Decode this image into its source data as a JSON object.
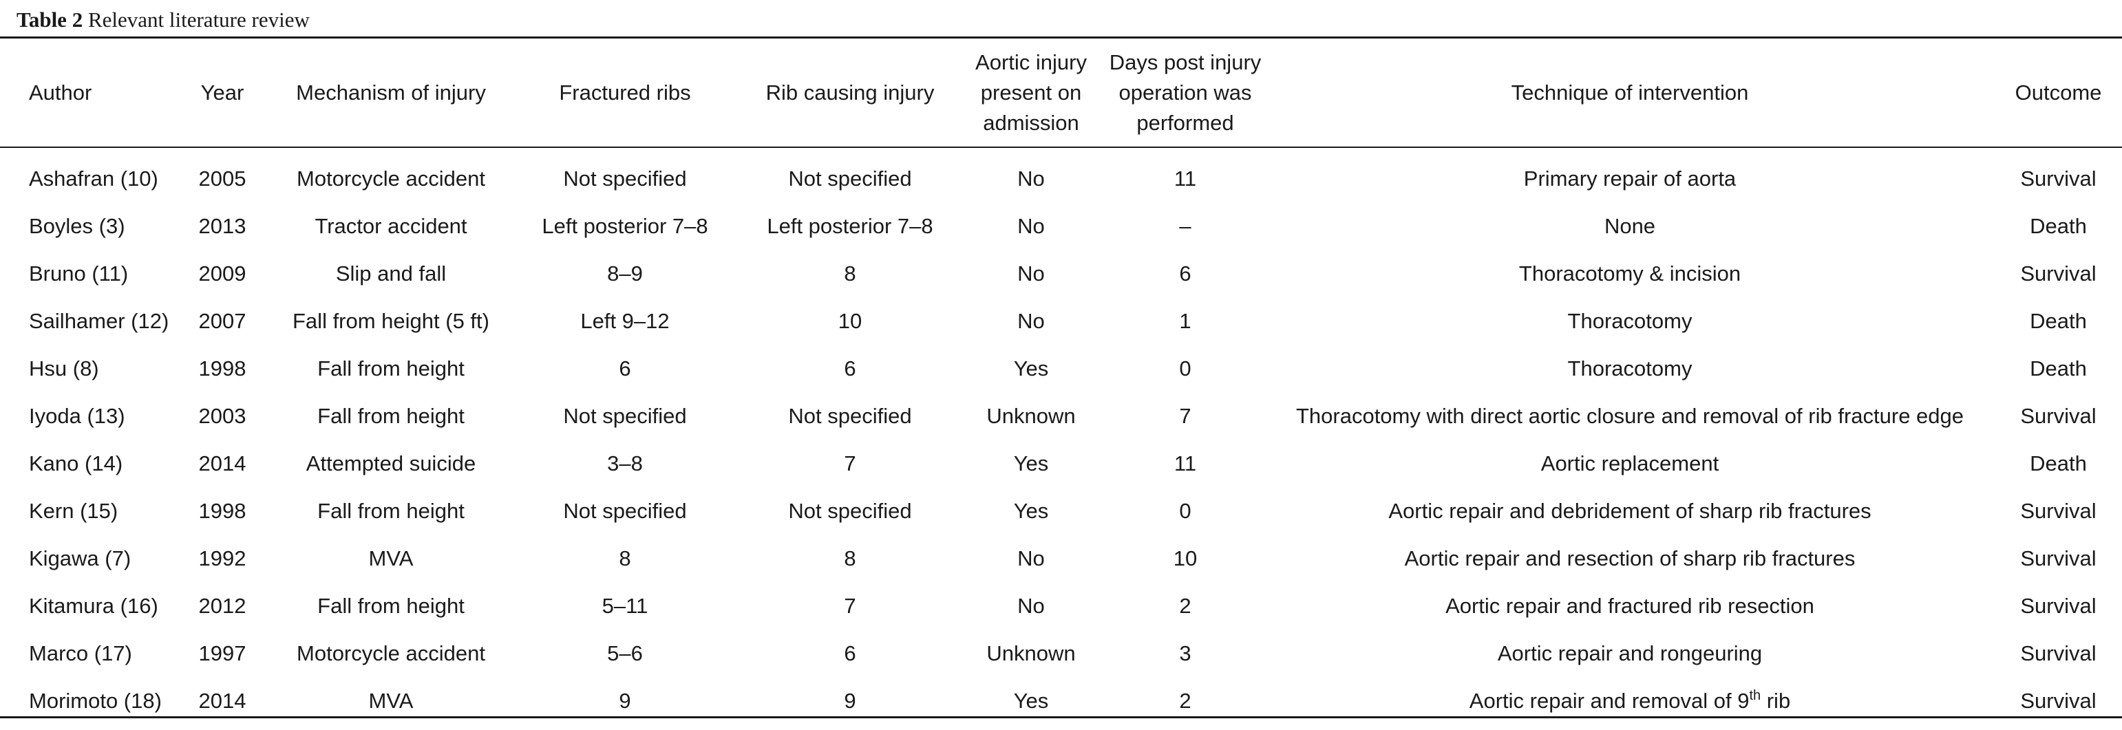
{
  "caption": {
    "label": "Table 2",
    "title": "Relevant literature review"
  },
  "table": {
    "headers": {
      "author": "Author",
      "year": "Year",
      "mechanism": "Mechanism of injury",
      "fractured_ribs": "Fractured ribs",
      "rib_causing": "Rib causing injury",
      "aortic_line1": "Aortic injury",
      "aortic_line2": "present on",
      "aortic_line3": "admission",
      "days_line1": "Days post injury",
      "days_line2": "operation was",
      "days_line3": "performed",
      "technique": "Technique of intervention",
      "outcome": "Outcome"
    },
    "rows": [
      {
        "author": "Ashafran (10)",
        "year": "2005",
        "mechanism": "Motorcycle accident",
        "fractured": "Not specified",
        "rib": "Not specified",
        "aortic": "No",
        "days": "11",
        "technique": "Primary repair of aorta",
        "technique_sup": "",
        "technique_tail": "",
        "outcome": "Survival"
      },
      {
        "author": "Boyles (3)",
        "year": "2013",
        "mechanism": "Tractor accident",
        "fractured": "Left posterior 7–8",
        "rib": "Left posterior 7–8",
        "aortic": "No",
        "days": "–",
        "technique": "None",
        "technique_sup": "",
        "technique_tail": "",
        "outcome": "Death"
      },
      {
        "author": "Bruno (11)",
        "year": "2009",
        "mechanism": "Slip and fall",
        "fractured": "8–9",
        "rib": "8",
        "aortic": "No",
        "days": "6",
        "technique": "Thoracotomy & incision",
        "technique_sup": "",
        "technique_tail": "",
        "outcome": "Survival"
      },
      {
        "author": "Sailhamer (12)",
        "year": "2007",
        "mechanism": "Fall from height (5 ft)",
        "fractured": "Left 9–12",
        "rib": "10",
        "aortic": "No",
        "days": "1",
        "technique": "Thoracotomy",
        "technique_sup": "",
        "technique_tail": "",
        "outcome": "Death"
      },
      {
        "author": "Hsu (8)",
        "year": "1998",
        "mechanism": "Fall from height",
        "fractured": "6",
        "rib": "6",
        "aortic": "Yes",
        "days": "0",
        "technique": "Thoracotomy",
        "technique_sup": "",
        "technique_tail": "",
        "outcome": "Death"
      },
      {
        "author": "Iyoda (13)",
        "year": "2003",
        "mechanism": "Fall from height",
        "fractured": "Not specified",
        "rib": "Not specified",
        "aortic": "Unknown",
        "days": "7",
        "technique": "Thoracotomy with direct aortic closure and removal of rib fracture edge",
        "technique_sup": "",
        "technique_tail": "",
        "outcome": "Survival"
      },
      {
        "author": "Kano (14)",
        "year": "2014",
        "mechanism": "Attempted suicide",
        "fractured": "3–8",
        "rib": "7",
        "aortic": "Yes",
        "days": "11",
        "technique": "Aortic replacement",
        "technique_sup": "",
        "technique_tail": "",
        "outcome": "Death"
      },
      {
        "author": "Kern (15)",
        "year": "1998",
        "mechanism": "Fall from height",
        "fractured": "Not specified",
        "rib": "Not specified",
        "aortic": "Yes",
        "days": "0",
        "technique": "Aortic repair and debridement of sharp rib fractures",
        "technique_sup": "",
        "technique_tail": "",
        "outcome": "Survival"
      },
      {
        "author": "Kigawa (7)",
        "year": "1992",
        "mechanism": "MVA",
        "fractured": "8",
        "rib": "8",
        "aortic": "No",
        "days": "10",
        "technique": "Aortic repair and resection of sharp rib fractures",
        "technique_sup": "",
        "technique_tail": "",
        "outcome": "Survival"
      },
      {
        "author": "Kitamura (16)",
        "year": "2012",
        "mechanism": "Fall from height",
        "fractured": "5–11",
        "rib": "7",
        "aortic": "No",
        "days": "2",
        "technique": "Aortic repair and fractured rib resection",
        "technique_sup": "",
        "technique_tail": "",
        "outcome": "Survival"
      },
      {
        "author": "Marco (17)",
        "year": "1997",
        "mechanism": "Motorcycle accident",
        "fractured": "5–6",
        "rib": "6",
        "aortic": "Unknown",
        "days": "3",
        "technique": "Aortic repair and rongeuring",
        "technique_sup": "",
        "technique_tail": "",
        "outcome": "Survival"
      },
      {
        "author": "Morimoto (18)",
        "year": "2014",
        "mechanism": "MVA",
        "fractured": "9",
        "rib": "9",
        "aortic": "Yes",
        "days": "2",
        "technique": "Aortic repair and removal of 9",
        "technique_sup": "th",
        "technique_tail": " rib",
        "outcome": "Survival"
      }
    ]
  }
}
